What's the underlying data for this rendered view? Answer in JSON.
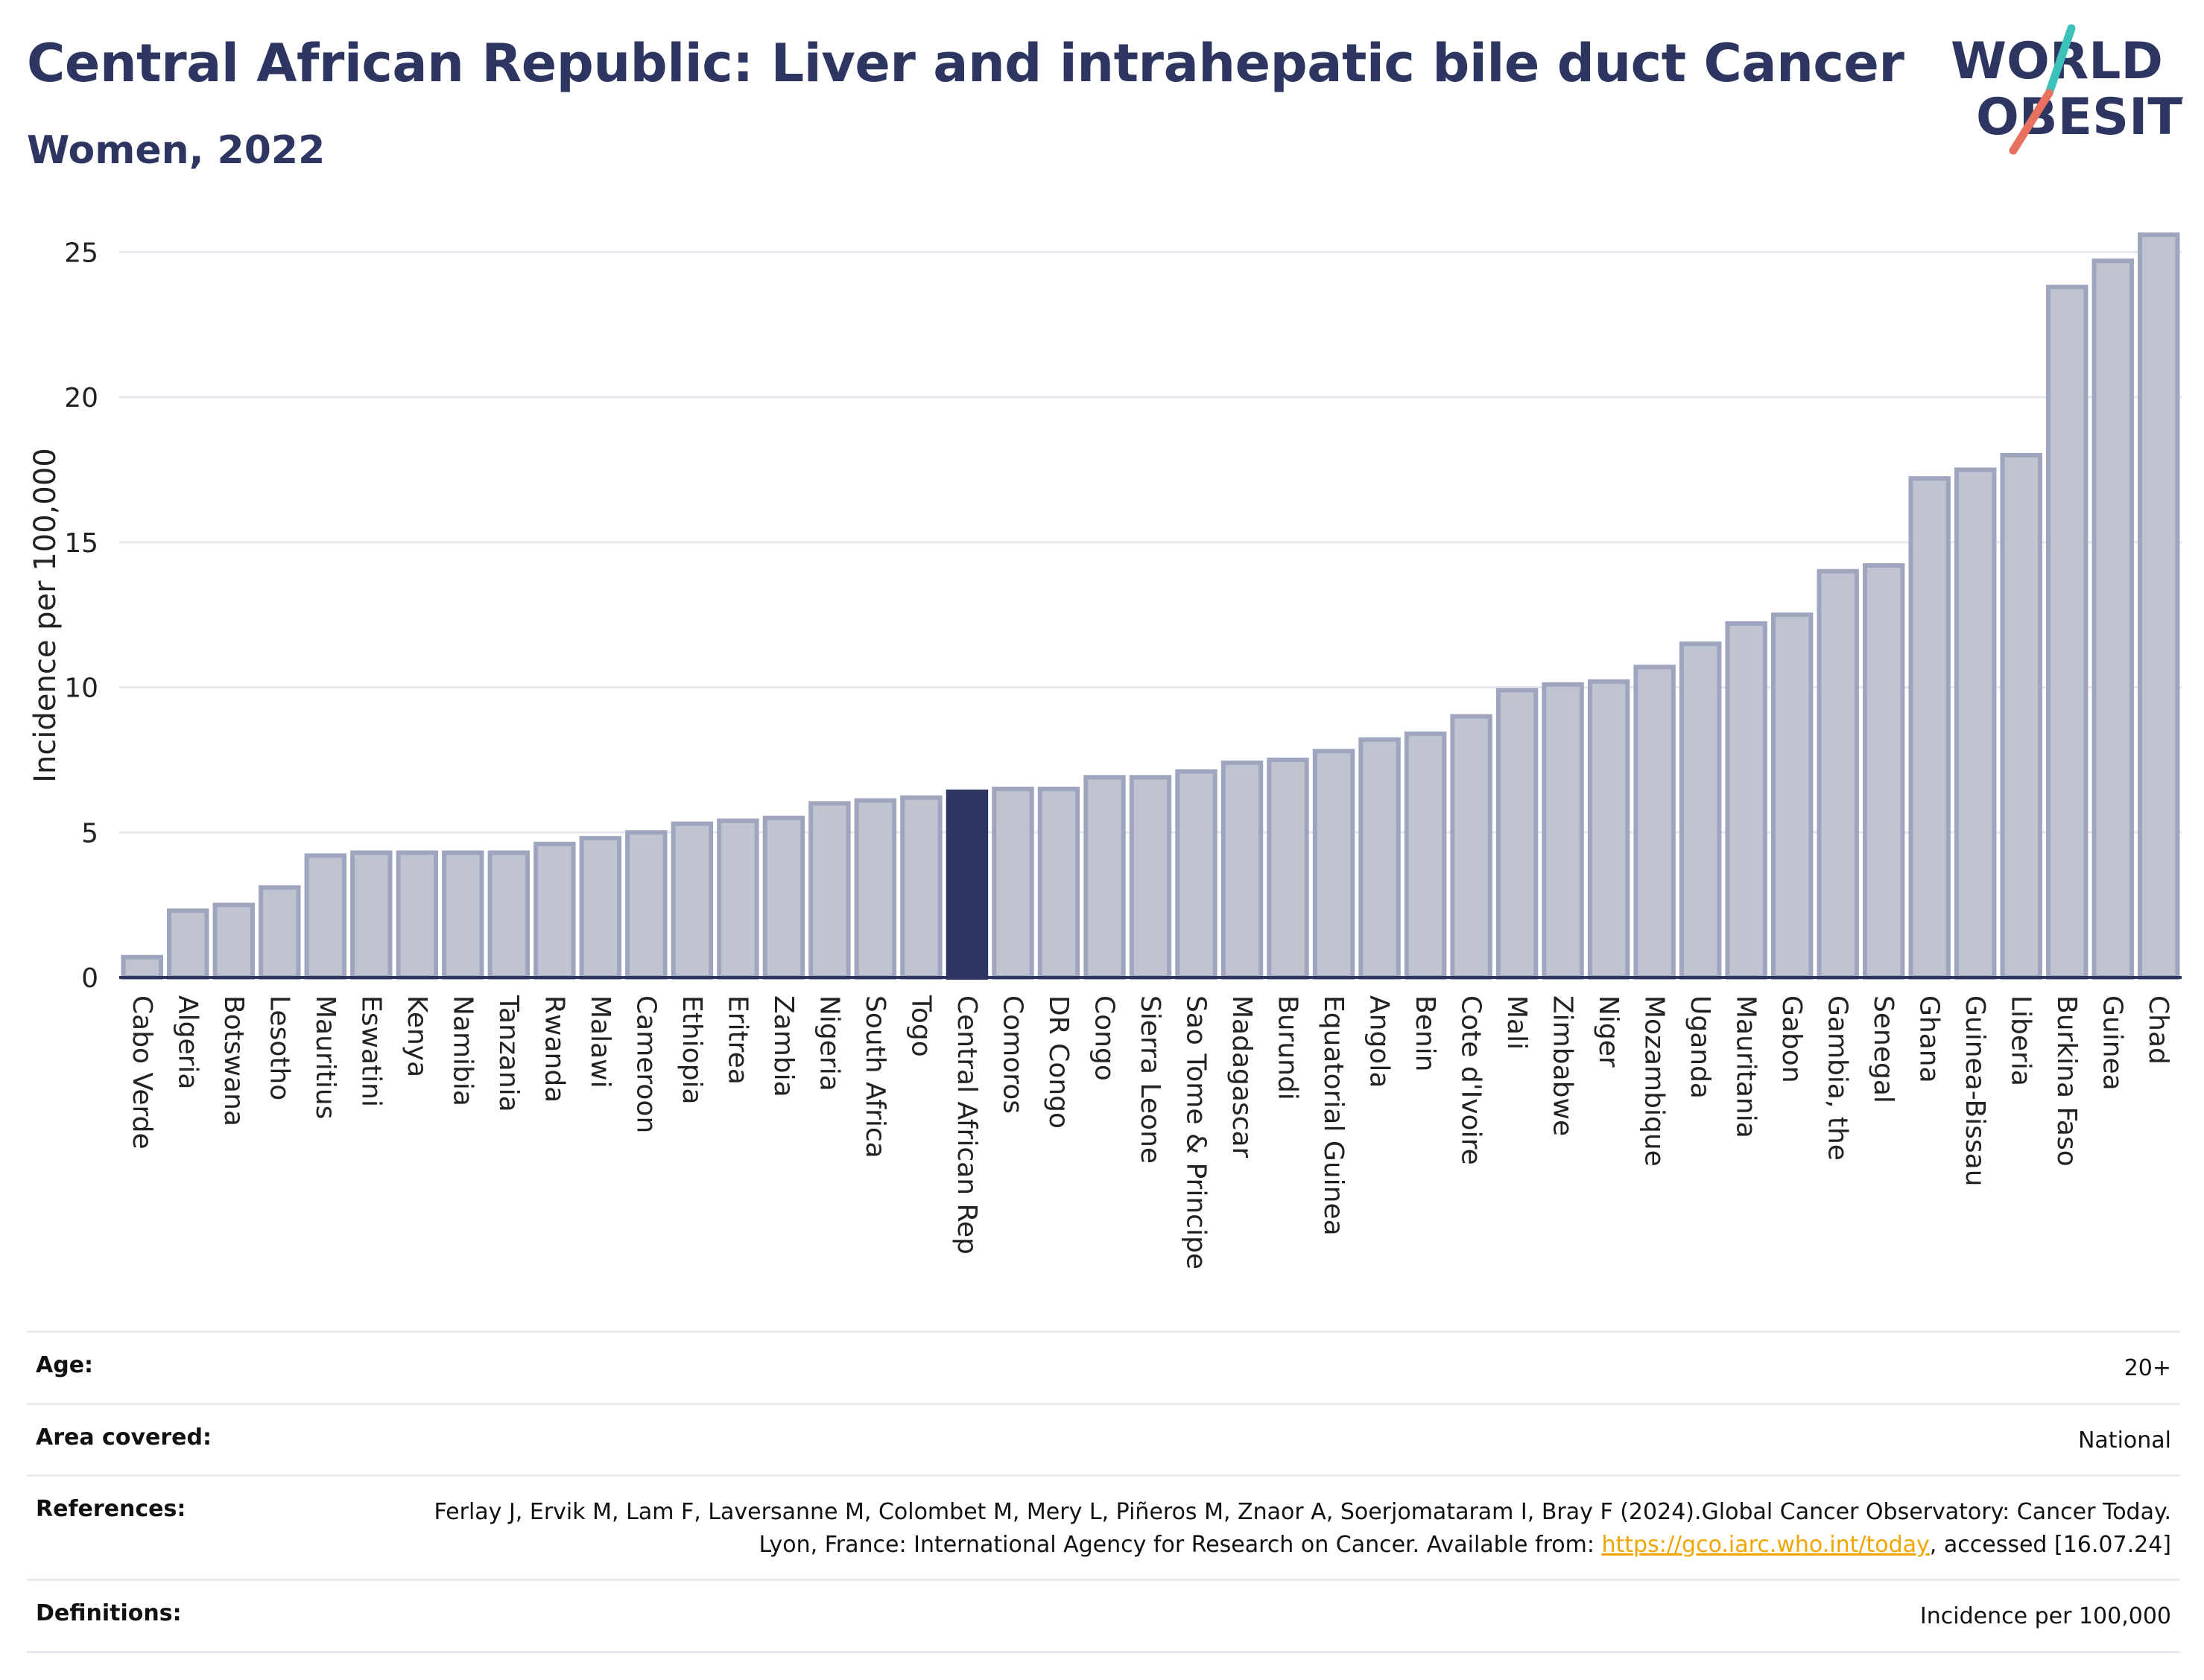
{
  "header": {
    "title": "Central African Republic: Liver and intrahepatic bile duct Cancer",
    "subtitle": "Women, 2022"
  },
  "logo": {
    "line1": "WORLD",
    "line2": "OBESITY",
    "text_color": "#2d3561",
    "slash_colors": [
      "#3cc1b8",
      "#e8705f"
    ]
  },
  "chart_data": {
    "type": "bar",
    "ylabel": "Incidence per 100,000",
    "ylim": [
      0,
      26.5
    ],
    "yticks": [
      0,
      5,
      10,
      15,
      20,
      25
    ],
    "grid": true,
    "highlight": "Central African Rep",
    "colors": {
      "bar": "#c0c4d0",
      "bar_edge": "#9fa5bf",
      "highlight": "#2d3561"
    },
    "categories": [
      "Cabo Verde",
      "Algeria",
      "Botswana",
      "Lesotho",
      "Mauritius",
      "Eswatini",
      "Kenya",
      "Namibia",
      "Tanzania",
      "Rwanda",
      "Malawi",
      "Cameroon",
      "Ethiopia",
      "Eritrea",
      "Zambia",
      "Nigeria",
      "South Africa",
      "Togo",
      "Central African Rep",
      "Comoros",
      "DR Congo",
      "Congo",
      "Sierra Leone",
      "Sao Tome & Principe",
      "Madagascar",
      "Burundi",
      "Equatorial Guinea",
      "Angola",
      "Benin",
      "Cote d'Ivoire",
      "Mali",
      "Zimbabwe",
      "Niger",
      "Mozambique",
      "Uganda",
      "Mauritania",
      "Gabon",
      "Gambia, the",
      "Senegal",
      "Ghana",
      "Guinea-Bissau",
      "Liberia",
      "Burkina Faso",
      "Guinea",
      "Chad"
    ],
    "values": [
      0.7,
      2.3,
      2.5,
      3.1,
      4.2,
      4.3,
      4.3,
      4.3,
      4.3,
      4.6,
      4.8,
      5.0,
      5.3,
      5.4,
      5.5,
      6.0,
      6.1,
      6.2,
      6.4,
      6.5,
      6.5,
      6.9,
      6.9,
      7.1,
      7.4,
      7.5,
      7.8,
      8.2,
      8.4,
      9.0,
      9.9,
      10.1,
      10.2,
      10.7,
      11.5,
      12.2,
      12.5,
      14.0,
      14.2,
      17.2,
      17.5,
      18.0,
      23.8,
      24.7,
      25.6
    ]
  },
  "meta": {
    "age_label": "Age:",
    "age_value": "20+",
    "area_label": "Area covered:",
    "area_value": "National",
    "references_label": "References:",
    "references_text1": "Ferlay J, Ervik M, Lam F, Laversanne M, Colombet M, Mery L, Piñeros M, Znaor A, Soerjomataram I, Bray F (2024).Global Cancer Observatory: Cancer Today. Lyon, France: International Agency for Research on Cancer. Available from: ",
    "references_link": "https://gco.iarc.who.int/today",
    "references_text2": ", accessed [16.07.24]",
    "definitions_label": "Definitions:",
    "definitions_value": "Incidence per 100,000"
  }
}
